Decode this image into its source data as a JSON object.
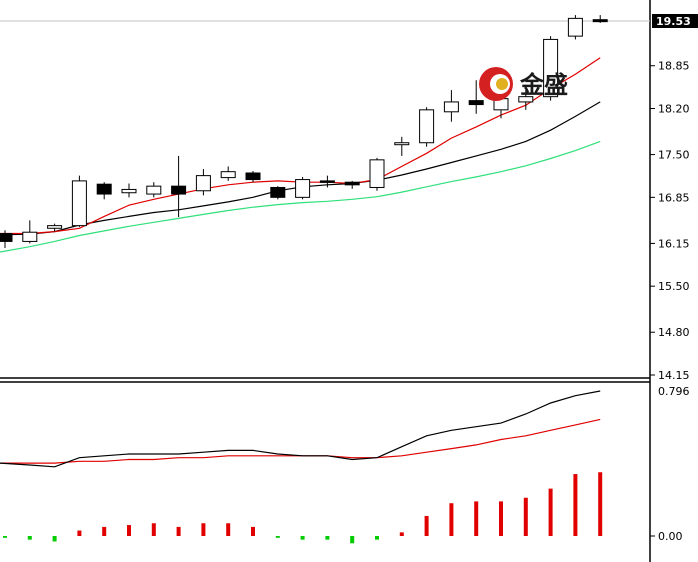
{
  "chart_data": [
    {
      "type": "candlestick",
      "panel": "price",
      "y_ticks": [
        "18.85",
        "18.20",
        "17.50",
        "16.85",
        "16.15",
        "15.50",
        "14.80",
        "14.15"
      ],
      "ylim": [
        14.15,
        19.53
      ],
      "current_price": "19.53",
      "colors": {
        "up_body": "#ffffff",
        "down_body": "#000000",
        "ma_fast": "#e00000",
        "ma_mid": "#000000",
        "ma_slow": "#2ee07a",
        "last_line": "#c0c0c0"
      },
      "candles": [
        {
          "o": 16.3,
          "h": 16.35,
          "l": 16.08,
          "c": 16.18
        },
        {
          "o": 16.18,
          "h": 16.5,
          "l": 16.15,
          "c": 16.32
        },
        {
          "o": 16.38,
          "h": 16.45,
          "l": 16.33,
          "c": 16.42
        },
        {
          "o": 16.42,
          "h": 17.18,
          "l": 16.4,
          "c": 17.1
        },
        {
          "o": 17.05,
          "h": 17.08,
          "l": 16.82,
          "c": 16.9
        },
        {
          "o": 16.92,
          "h": 17.06,
          "l": 16.85,
          "c": 16.97
        },
        {
          "o": 16.9,
          "h": 17.08,
          "l": 16.85,
          "c": 17.02
        },
        {
          "o": 17.02,
          "h": 17.48,
          "l": 16.55,
          "c": 16.9
        },
        {
          "o": 16.95,
          "h": 17.28,
          "l": 16.88,
          "c": 17.18
        },
        {
          "o": 17.15,
          "h": 17.32,
          "l": 17.1,
          "c": 17.24
        },
        {
          "o": 17.22,
          "h": 17.25,
          "l": 17.08,
          "c": 17.12
        },
        {
          "o": 17.0,
          "h": 17.02,
          "l": 16.82,
          "c": 16.85
        },
        {
          "o": 16.85,
          "h": 17.16,
          "l": 16.82,
          "c": 17.12
        },
        {
          "o": 17.1,
          "h": 17.18,
          "l": 17.0,
          "c": 17.08
        },
        {
          "o": 17.08,
          "h": 17.1,
          "l": 16.98,
          "c": 17.04
        },
        {
          "o": 17.0,
          "h": 17.45,
          "l": 16.95,
          "c": 17.42
        },
        {
          "o": 17.65,
          "h": 17.77,
          "l": 17.48,
          "c": 17.68
        },
        {
          "o": 17.68,
          "h": 18.22,
          "l": 17.62,
          "c": 18.18
        },
        {
          "o": 18.15,
          "h": 18.48,
          "l": 18.0,
          "c": 18.3
        },
        {
          "o": 18.32,
          "h": 18.63,
          "l": 18.12,
          "c": 18.26
        },
        {
          "o": 18.18,
          "h": 18.48,
          "l": 18.05,
          "c": 18.35
        },
        {
          "o": 18.3,
          "h": 18.48,
          "l": 18.18,
          "c": 18.38
        },
        {
          "o": 18.38,
          "h": 19.3,
          "l": 18.32,
          "c": 19.25
        },
        {
          "o": 19.3,
          "h": 19.62,
          "l": 19.25,
          "c": 19.57
        },
        {
          "o": 19.55,
          "h": 19.62,
          "l": 19.5,
          "c": 19.52
        }
      ],
      "ma_fast": [
        16.3,
        16.3,
        16.33,
        16.38,
        16.56,
        16.73,
        16.82,
        16.9,
        16.98,
        17.04,
        17.08,
        17.1,
        17.08,
        17.08,
        17.06,
        17.12,
        17.32,
        17.52,
        17.75,
        17.92,
        18.1,
        18.25,
        18.5,
        18.72,
        18.97
      ],
      "ma_mid": [
        16.28,
        16.29,
        16.33,
        16.43,
        16.5,
        16.56,
        16.62,
        16.66,
        16.72,
        16.78,
        16.85,
        16.95,
        17.01,
        17.04,
        17.06,
        17.11,
        17.19,
        17.28,
        17.38,
        17.48,
        17.58,
        17.7,
        17.87,
        18.08,
        18.3
      ],
      "ma_slow": [
        16.02,
        16.1,
        16.18,
        16.27,
        16.34,
        16.41,
        16.47,
        16.53,
        16.59,
        16.65,
        16.7,
        16.74,
        16.77,
        16.79,
        16.82,
        16.86,
        16.93,
        17.01,
        17.09,
        17.16,
        17.24,
        17.33,
        17.44,
        17.56,
        17.7
      ]
    },
    {
      "type": "macd",
      "panel": "indicator",
      "y_ticks": [
        "0.796",
        "0.00"
      ],
      "ylim": [
        -0.06,
        0.796
      ],
      "colors": {
        "dif": "#000000",
        "dea": "#e00000",
        "hist_pos": "#e00000",
        "hist_neg": "#00cc00"
      },
      "dif": [
        0.4,
        0.39,
        0.38,
        0.43,
        0.44,
        0.45,
        0.45,
        0.45,
        0.46,
        0.47,
        0.47,
        0.45,
        0.44,
        0.44,
        0.42,
        0.43,
        0.49,
        0.55,
        0.58,
        0.6,
        0.62,
        0.67,
        0.73,
        0.77,
        0.796
      ],
      "dea": [
        0.4,
        0.4,
        0.4,
        0.41,
        0.41,
        0.42,
        0.42,
        0.43,
        0.43,
        0.44,
        0.44,
        0.44,
        0.44,
        0.44,
        0.43,
        0.43,
        0.44,
        0.46,
        0.48,
        0.5,
        0.53,
        0.55,
        0.58,
        0.61,
        0.64
      ],
      "hist": [
        -0.01,
        -0.02,
        -0.03,
        0.03,
        0.05,
        0.06,
        0.07,
        0.05,
        0.07,
        0.07,
        0.05,
        -0.01,
        -0.02,
        -0.02,
        -0.04,
        -0.02,
        0.02,
        0.11,
        0.18,
        0.19,
        0.19,
        0.21,
        0.26,
        0.34,
        0.35
      ]
    }
  ],
  "logo": {
    "label": "金盛"
  }
}
